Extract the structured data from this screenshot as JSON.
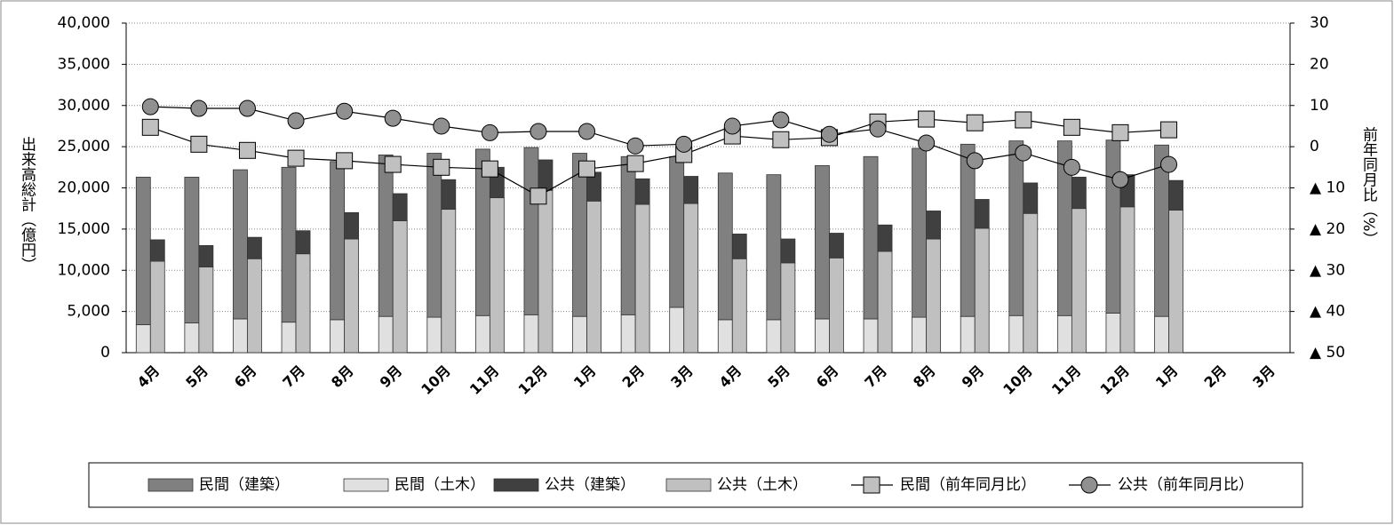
{
  "chart_data": {
    "type": "bar",
    "categories": [
      "4月",
      "5月",
      "6月",
      "7月",
      "8月",
      "9月",
      "10月",
      "11月",
      "12月",
      "1月",
      "2月",
      "3月",
      "4月",
      "5月",
      "6月",
      "7月",
      "8月",
      "9月",
      "10月",
      "11月",
      "12月",
      "1月",
      "2月",
      "3月"
    ],
    "y_label": "出来高総計（億円）",
    "y2_label": "前年同月比（%）",
    "ylim": [
      0,
      40000
    ],
    "yticks": [
      0,
      {
        "value": 5000,
        "label": "5,000"
      },
      {
        "value": 10000,
        "label": "10,000"
      },
      {
        "value": 15000,
        "label": "15,000"
      },
      {
        "value": 20000,
        "label": "20,000"
      },
      {
        "value": 25000,
        "label": "25,000"
      },
      {
        "value": 30000,
        "label": "30,000"
      },
      {
        "value": 35000,
        "label": "35,000"
      },
      {
        "value": 40000,
        "label": "40,000"
      }
    ],
    "y2lim": [
      -50,
      30
    ],
    "y2ticks": [
      30,
      20,
      10,
      0,
      {
        "value": -10,
        "label": "▲ 10"
      },
      {
        "value": -20,
        "label": "▲ 20"
      },
      {
        "value": -30,
        "label": "▲ 30"
      },
      {
        "value": -40,
        "label": "▲ 40"
      },
      {
        "value": -50,
        "label": "▲ 50"
      }
    ],
    "grid": true,
    "legend": "bottom",
    "series": [
      {
        "name": "民間（建築）",
        "color": "#808080",
        "values": [
          17900,
          17700,
          18100,
          18800,
          19200,
          19600,
          19900,
          20200,
          20300,
          19800,
          19200,
          18300,
          17800,
          17600,
          18600,
          19700,
          20500,
          20900,
          21200,
          21200,
          21000,
          20800,
          null,
          null
        ]
      },
      {
        "name": "民間（土木）",
        "color": "#e0e0e0",
        "values": [
          3400,
          3600,
          4100,
          3700,
          4000,
          4400,
          4300,
          4500,
          4600,
          4400,
          4600,
          5500,
          4000,
          4000,
          4100,
          4100,
          4300,
          4400,
          4500,
          4500,
          4800,
          4400,
          null,
          null
        ]
      },
      {
        "name": "公共（建築）",
        "color": "#404040",
        "values": [
          2600,
          2600,
          2600,
          2800,
          3200,
          3300,
          3600,
          3700,
          3700,
          3500,
          3100,
          3300,
          3000,
          2900,
          3000,
          3200,
          3400,
          3500,
          3700,
          3800,
          3900,
          3600,
          null,
          null
        ]
      },
      {
        "name": "公共（土木）",
        "color": "#c0c0c0",
        "values": [
          11100,
          10400,
          11400,
          12000,
          13800,
          16000,
          17400,
          18800,
          19700,
          18400,
          18000,
          18100,
          11400,
          10900,
          11500,
          12300,
          13800,
          15100,
          16900,
          17500,
          17700,
          17300,
          null,
          null
        ]
      },
      {
        "name": "民間（前年同月比）",
        "type": "line",
        "axis": "y2",
        "marker": "square",
        "color": "#c0c0c0",
        "values": [
          4.7,
          0.6,
          -0.9,
          -2.8,
          -3.4,
          -4.3,
          -5.0,
          -5.4,
          -12.0,
          -5.4,
          -4.1,
          -1.9,
          2.6,
          1.7,
          2.2,
          6.0,
          6.7,
          5.8,
          6.5,
          4.7,
          3.4,
          4.1,
          null,
          null
        ]
      },
      {
        "name": "公共（前年同月比）",
        "type": "line",
        "axis": "y2",
        "marker": "circle",
        "color": "#909090",
        "values": [
          9.7,
          9.3,
          9.3,
          6.3,
          8.6,
          6.9,
          5.0,
          3.4,
          3.7,
          3.7,
          0.2,
          0.6,
          5.0,
          6.5,
          3.0,
          4.3,
          0.9,
          -3.4,
          -1.5,
          -5.0,
          -8.0,
          -4.3,
          null,
          null
        ]
      }
    ]
  }
}
